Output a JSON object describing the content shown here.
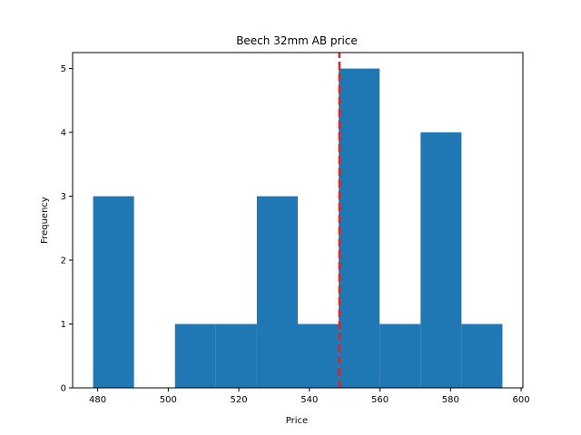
{
  "chart_data": {
    "type": "bar",
    "title": "Beech 32mm AB price",
    "xlabel": "Price",
    "ylabel": "Frequency",
    "bins": [
      {
        "x0": 478.7,
        "x1": 490.3,
        "value": 3
      },
      {
        "x0": 490.3,
        "x1": 501.9,
        "value": 0
      },
      {
        "x0": 501.9,
        "x1": 513.5,
        "value": 1
      },
      {
        "x0": 513.5,
        "x1": 525.1,
        "value": 1
      },
      {
        "x0": 525.1,
        "x1": 536.7,
        "value": 3
      },
      {
        "x0": 536.7,
        "x1": 548.3,
        "value": 1
      },
      {
        "x0": 548.3,
        "x1": 559.9,
        "value": 5
      },
      {
        "x0": 559.9,
        "x1": 571.5,
        "value": 1
      },
      {
        "x0": 571.5,
        "x1": 583.1,
        "value": 4
      },
      {
        "x0": 583.1,
        "x1": 594.7,
        "value": 1
      }
    ],
    "mean_line": {
      "x": 548.5,
      "color": "#d62728",
      "style": "dashed"
    },
    "xlim": [
      472.9,
      600.5
    ],
    "ylim": [
      0,
      5.25
    ],
    "xticks": [
      480,
      500,
      520,
      540,
      560,
      580,
      600
    ],
    "yticks": [
      0,
      1,
      2,
      3,
      4,
      5
    ],
    "bar_color": "#1f77b4",
    "grid": false
  }
}
